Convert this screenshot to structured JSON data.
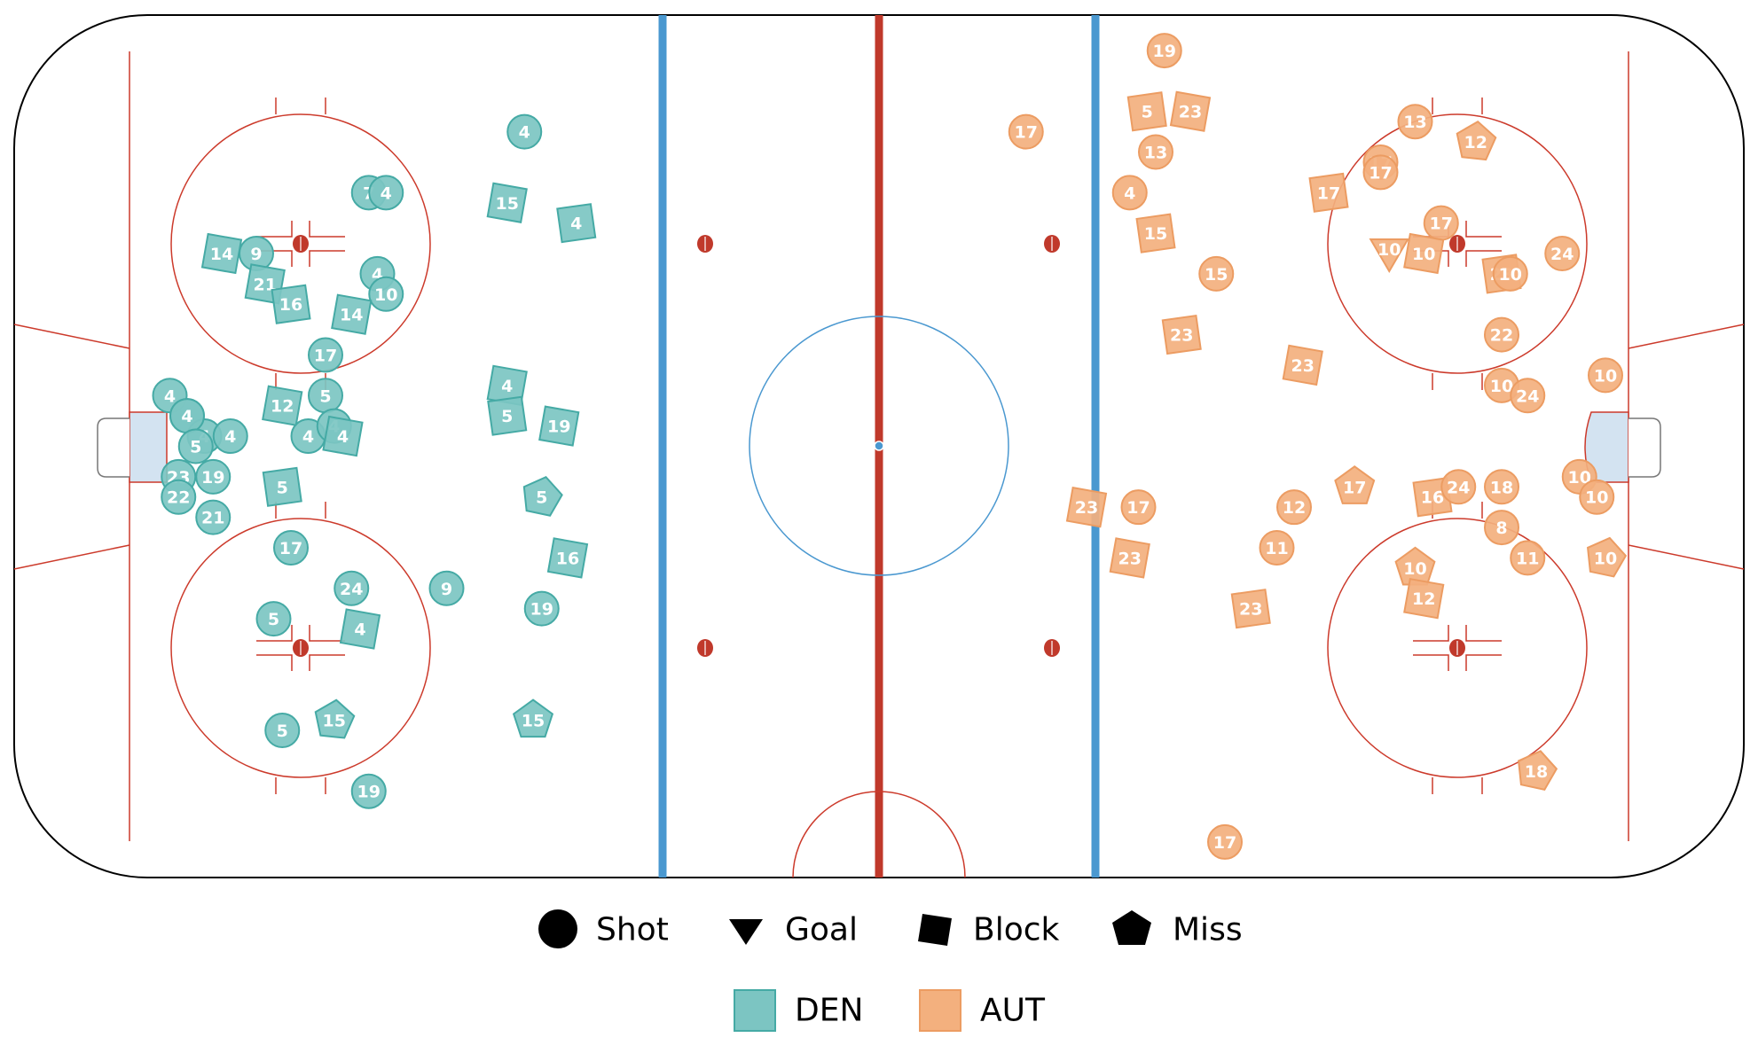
{
  "colors": {
    "DEN": "#7cc5c2",
    "DEN_stroke": "#45aaa5",
    "AUT": "#f3b07e",
    "AUT_stroke": "#ec9c62",
    "red_line": "#c0392b",
    "blue_line": "#4a98d0",
    "thin_red": "#cc3a2b",
    "center_circle": "#4a98d0",
    "crease_fill": "#d3e3f1"
  },
  "legend": {
    "types": [
      {
        "key": "shot",
        "label": "Shot"
      },
      {
        "key": "goal",
        "label": "Goal"
      },
      {
        "key": "block",
        "label": "Block"
      },
      {
        "key": "miss",
        "label": "Miss"
      }
    ],
    "teams": [
      {
        "key": "DEN",
        "label": "DEN"
      },
      {
        "key": "AUT",
        "label": "AUT"
      }
    ]
  },
  "chart_data": {
    "type": "scatter",
    "x_range": [
      -100,
      100
    ],
    "y_range": [
      -42.5,
      42.5
    ],
    "events": [
      {
        "team": "DEN",
        "type": "shot",
        "player": "4",
        "x": -41,
        "y": 31
      },
      {
        "team": "DEN",
        "type": "block",
        "player": "15",
        "x": -43,
        "y": 24
      },
      {
        "team": "DEN",
        "type": "block",
        "player": "4",
        "x": -35,
        "y": 22
      },
      {
        "team": "DEN",
        "type": "shot",
        "player": "7",
        "x": -59,
        "y": 25
      },
      {
        "team": "DEN",
        "type": "shot",
        "player": "4",
        "x": -57,
        "y": 25
      },
      {
        "team": "DEN",
        "type": "block",
        "player": "14",
        "x": -76,
        "y": 19
      },
      {
        "team": "DEN",
        "type": "shot",
        "player": "9",
        "x": -72,
        "y": 19
      },
      {
        "team": "DEN",
        "type": "block",
        "player": "21",
        "x": -71,
        "y": 16
      },
      {
        "team": "DEN",
        "type": "block",
        "player": "16",
        "x": -68,
        "y": 14
      },
      {
        "team": "DEN",
        "type": "shot",
        "player": "4",
        "x": -58,
        "y": 17
      },
      {
        "team": "DEN",
        "type": "shot",
        "player": "10",
        "x": -57,
        "y": 15
      },
      {
        "team": "DEN",
        "type": "block",
        "player": "14",
        "x": -61,
        "y": 13
      },
      {
        "team": "DEN",
        "type": "shot",
        "player": "17",
        "x": -64,
        "y": 9
      },
      {
        "team": "DEN",
        "type": "shot",
        "player": "4",
        "x": -82,
        "y": 5
      },
      {
        "team": "DEN",
        "type": "shot",
        "player": "4",
        "x": -80,
        "y": 3
      },
      {
        "team": "DEN",
        "type": "shot",
        "player": "4",
        "x": -78,
        "y": 1
      },
      {
        "team": "DEN",
        "type": "shot",
        "player": "4",
        "x": -75,
        "y": 1
      },
      {
        "team": "DEN",
        "type": "shot",
        "player": "4",
        "x": -80,
        "y": 3
      },
      {
        "team": "DEN",
        "type": "shot",
        "player": "5",
        "x": -79,
        "y": 0
      },
      {
        "team": "DEN",
        "type": "shot",
        "player": "23",
        "x": -81,
        "y": -3
      },
      {
        "team": "DEN",
        "type": "shot",
        "player": "22",
        "x": -81,
        "y": -5
      },
      {
        "team": "DEN",
        "type": "shot",
        "player": "19",
        "x": -77,
        "y": -3
      },
      {
        "team": "DEN",
        "type": "shot",
        "player": "21",
        "x": -77,
        "y": -7
      },
      {
        "team": "DEN",
        "type": "block",
        "player": "12",
        "x": -69,
        "y": 4
      },
      {
        "team": "DEN",
        "type": "shot",
        "player": "5",
        "x": -64,
        "y": 5
      },
      {
        "team": "DEN",
        "type": "shot",
        "player": "4",
        "x": -66,
        "y": 1
      },
      {
        "team": "DEN",
        "type": "shot",
        "player": "4",
        "x": -63,
        "y": 2
      },
      {
        "team": "DEN",
        "type": "block",
        "player": "4",
        "x": -62,
        "y": 1
      },
      {
        "team": "DEN",
        "type": "block",
        "player": "5",
        "x": -69,
        "y": -4
      },
      {
        "team": "DEN",
        "type": "block",
        "player": "4",
        "x": -43,
        "y": 6
      },
      {
        "team": "DEN",
        "type": "block",
        "player": "5",
        "x": -43,
        "y": 3
      },
      {
        "team": "DEN",
        "type": "block",
        "player": "19",
        "x": -37,
        "y": 2
      },
      {
        "team": "DEN",
        "type": "miss",
        "player": "5",
        "x": -39,
        "y": -5
      },
      {
        "team": "DEN",
        "type": "block",
        "player": "16",
        "x": -36,
        "y": -11
      },
      {
        "team": "DEN",
        "type": "shot",
        "player": "19",
        "x": -39,
        "y": -16
      },
      {
        "team": "DEN",
        "type": "shot",
        "player": "17",
        "x": -68,
        "y": -10
      },
      {
        "team": "DEN",
        "type": "shot",
        "player": "24",
        "x": -61,
        "y": -14
      },
      {
        "team": "DEN",
        "type": "shot",
        "player": "9",
        "x": -50,
        "y": -14
      },
      {
        "team": "DEN",
        "type": "shot",
        "player": "5",
        "x": -70,
        "y": -17
      },
      {
        "team": "DEN",
        "type": "block",
        "player": "4",
        "x": -60,
        "y": -18
      },
      {
        "team": "DEN",
        "type": "miss",
        "player": "15",
        "x": -63,
        "y": -27
      },
      {
        "team": "DEN",
        "type": "shot",
        "player": "5",
        "x": -69,
        "y": -28
      },
      {
        "team": "DEN",
        "type": "miss",
        "player": "15",
        "x": -40,
        "y": -27
      },
      {
        "team": "DEN",
        "type": "shot",
        "player": "19",
        "x": -59,
        "y": -34
      },
      {
        "team": "AUT",
        "type": "shot",
        "player": "19",
        "x": 33,
        "y": 39
      },
      {
        "team": "AUT",
        "type": "shot",
        "player": "17",
        "x": 17,
        "y": 31
      },
      {
        "team": "AUT",
        "type": "block",
        "player": "5",
        "x": 31,
        "y": 33
      },
      {
        "team": "AUT",
        "type": "block",
        "player": "23",
        "x": 36,
        "y": 33
      },
      {
        "team": "AUT",
        "type": "shot",
        "player": "13",
        "x": 32,
        "y": 29
      },
      {
        "team": "AUT",
        "type": "shot",
        "player": "4",
        "x": 29,
        "y": 25
      },
      {
        "team": "AUT",
        "type": "block",
        "player": "15",
        "x": 32,
        "y": 21
      },
      {
        "team": "AUT",
        "type": "shot",
        "player": "15",
        "x": 39,
        "y": 17
      },
      {
        "team": "AUT",
        "type": "block",
        "player": "23",
        "x": 35,
        "y": 11
      },
      {
        "team": "AUT",
        "type": "block",
        "player": "23",
        "x": 49,
        "y": 8
      },
      {
        "team": "AUT",
        "type": "block",
        "player": "17",
        "x": 52,
        "y": 25
      },
      {
        "team": "AUT",
        "type": "shot",
        "player": "17",
        "x": 58,
        "y": 28
      },
      {
        "team": "AUT",
        "type": "shot",
        "player": "17",
        "x": 58,
        "y": 27
      },
      {
        "team": "AUT",
        "type": "shot",
        "player": "13",
        "x": 62,
        "y": 32
      },
      {
        "team": "AUT",
        "type": "miss",
        "player": "12",
        "x": 69,
        "y": 30
      },
      {
        "team": "AUT",
        "type": "shot",
        "player": "17",
        "x": 65,
        "y": 22
      },
      {
        "team": "AUT",
        "type": "goal",
        "player": "10",
        "x": 59,
        "y": 19
      },
      {
        "team": "AUT",
        "type": "block",
        "player": "10",
        "x": 63,
        "y": 19
      },
      {
        "team": "AUT",
        "type": "block",
        "player": "23",
        "x": 72,
        "y": 17
      },
      {
        "team": "AUT",
        "type": "shot",
        "player": "10",
        "x": 73,
        "y": 17
      },
      {
        "team": "AUT",
        "type": "shot",
        "player": "24",
        "x": 79,
        "y": 19
      },
      {
        "team": "AUT",
        "type": "shot",
        "player": "22",
        "x": 72,
        "y": 11
      },
      {
        "team": "AUT",
        "type": "shot",
        "player": "10",
        "x": 72,
        "y": 6
      },
      {
        "team": "AUT",
        "type": "shot",
        "player": "24",
        "x": 75,
        "y": 5
      },
      {
        "team": "AUT",
        "type": "shot",
        "player": "10",
        "x": 84,
        "y": 7
      },
      {
        "team": "AUT",
        "type": "block",
        "player": "23",
        "x": 24,
        "y": -6
      },
      {
        "team": "AUT",
        "type": "shot",
        "player": "17",
        "x": 30,
        "y": -6
      },
      {
        "team": "AUT",
        "type": "block",
        "player": "23",
        "x": 29,
        "y": -11
      },
      {
        "team": "AUT",
        "type": "block",
        "player": "23",
        "x": 43,
        "y": -16
      },
      {
        "team": "AUT",
        "type": "shot",
        "player": "12",
        "x": 48,
        "y": -6
      },
      {
        "team": "AUT",
        "type": "shot",
        "player": "11",
        "x": 46,
        "y": -10
      },
      {
        "team": "AUT",
        "type": "miss",
        "player": "17",
        "x": 55,
        "y": -4
      },
      {
        "team": "AUT",
        "type": "block",
        "player": "16",
        "x": 64,
        "y": -5
      },
      {
        "team": "AUT",
        "type": "shot",
        "player": "24",
        "x": 67,
        "y": -4
      },
      {
        "team": "AUT",
        "type": "shot",
        "player": "18",
        "x": 72,
        "y": -4
      },
      {
        "team": "AUT",
        "type": "shot",
        "player": "10",
        "x": 81,
        "y": -3
      },
      {
        "team": "AUT",
        "type": "shot",
        "player": "10",
        "x": 83,
        "y": -5
      },
      {
        "team": "AUT",
        "type": "shot",
        "player": "8",
        "x": 72,
        "y": -8
      },
      {
        "team": "AUT",
        "type": "shot",
        "player": "11",
        "x": 75,
        "y": -11
      },
      {
        "team": "AUT",
        "type": "miss",
        "player": "10",
        "x": 84,
        "y": -11
      },
      {
        "team": "AUT",
        "type": "miss",
        "player": "10",
        "x": 62,
        "y": -12
      },
      {
        "team": "AUT",
        "type": "block",
        "player": "12",
        "x": 63,
        "y": -15
      },
      {
        "team": "AUT",
        "type": "miss",
        "player": "18",
        "x": 76,
        "y": -32
      },
      {
        "team": "AUT",
        "type": "shot",
        "player": "17",
        "x": 40,
        "y": -39
      }
    ]
  }
}
